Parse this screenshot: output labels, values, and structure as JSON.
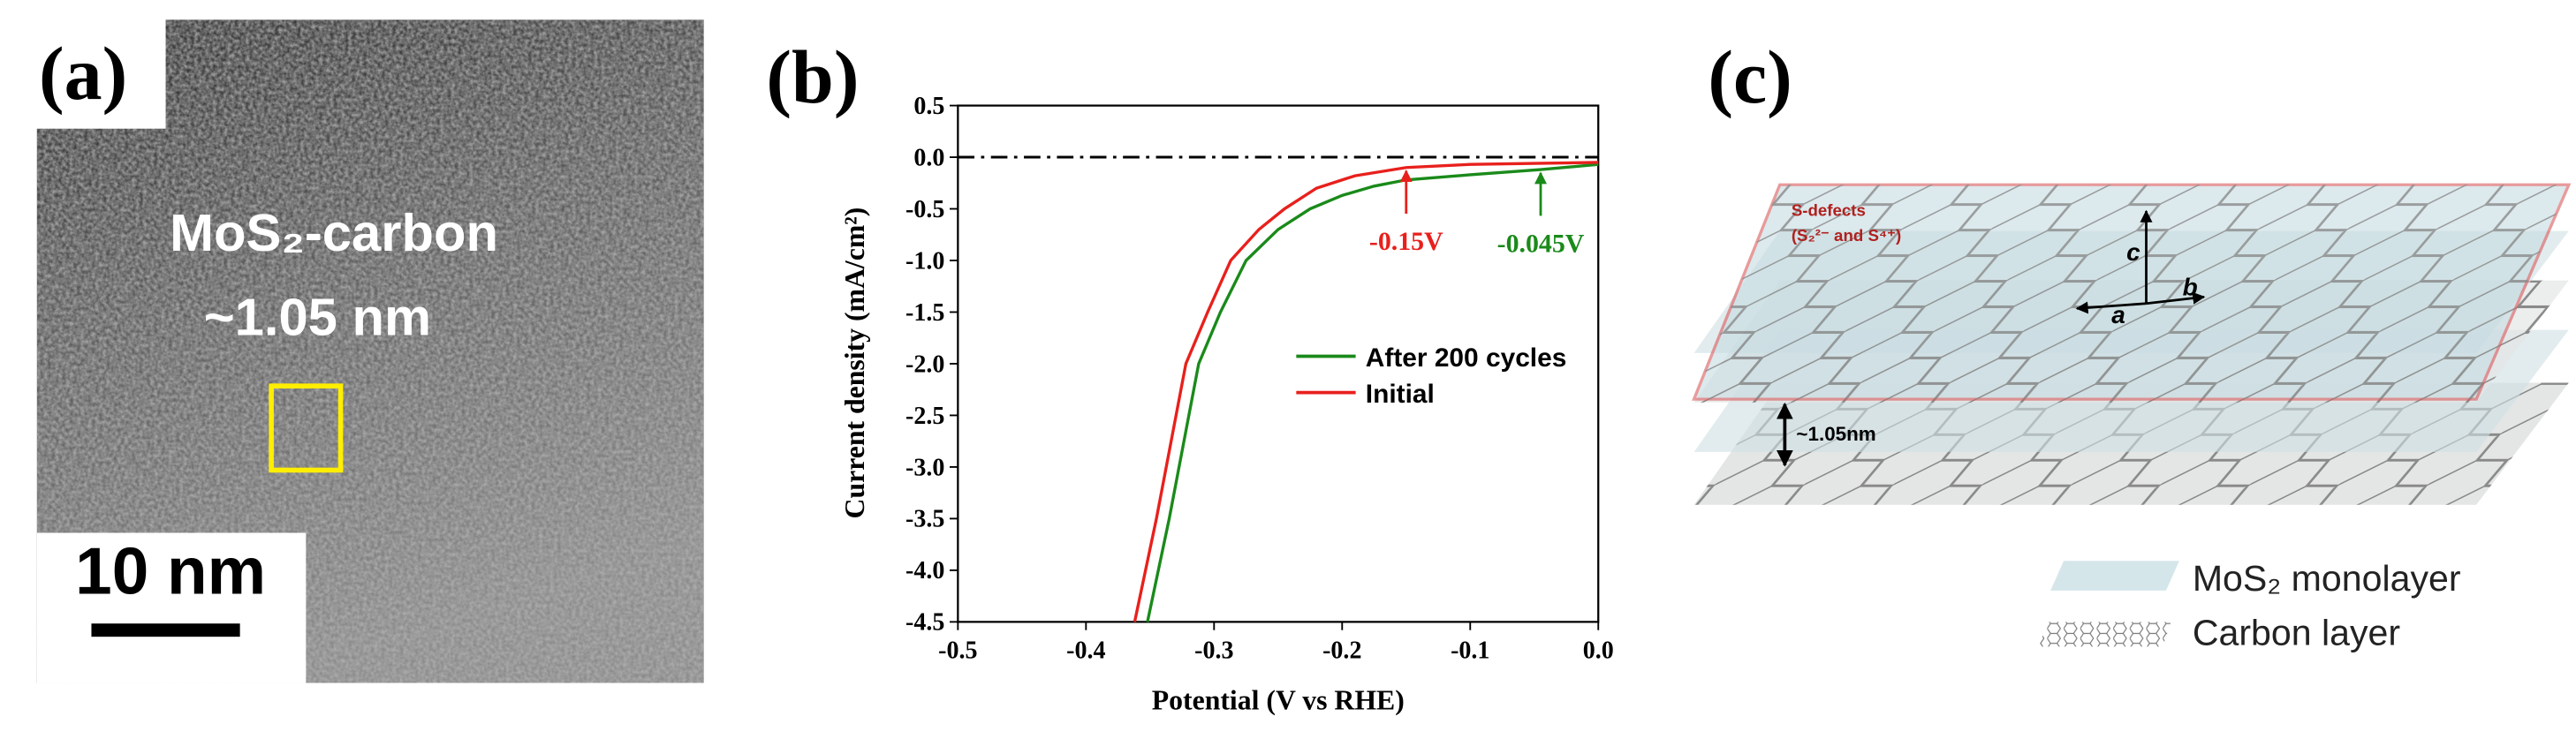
{
  "panel_labels": [
    "(a)",
    "(b)",
    "(c)"
  ],
  "tem_image": {
    "label_line1": "MoS₂-carbon",
    "label_line2": "~1.05 nm",
    "scale_bar": "10 nm"
  },
  "chart_data": {
    "type": "line",
    "xlabel": "Potential (V vs  RHE)",
    "ylabel": "Current density (mA/cm²)",
    "xlim": [
      -0.5,
      0
    ],
    "ylim": [
      -4.5,
      0.5
    ],
    "xticks": [
      -0.5,
      -0.4,
      -0.3,
      -0.2,
      -0.1,
      {
        "value": 0,
        "label": "0.0"
      }
    ],
    "yticks": [
      0.5,
      {
        "value": 0,
        "label": "0.0"
      },
      -0.5,
      {
        "value": -1,
        "label": "-1.0"
      },
      -1.5,
      {
        "value": -2,
        "label": "-2.0"
      },
      -2.5,
      {
        "value": -3,
        "label": "-3.0"
      },
      -3.5,
      {
        "value": -4,
        "label": "-4.0"
      },
      -4.5
    ],
    "reference_line": 0,
    "legend": "center-right",
    "series": [
      {
        "name": "After 200 cycles",
        "color": "#1a8a1a",
        "x": [
          -0.352,
          -0.335,
          -0.312,
          -0.295,
          -0.275,
          -0.25,
          -0.225,
          -0.2,
          -0.175,
          -0.15,
          -0.1,
          -0.045,
          0
        ],
        "values": [
          -4.5,
          -3.5,
          -2.0,
          -1.5,
          -1.0,
          -0.7,
          -0.5,
          -0.37,
          -0.28,
          -0.22,
          -0.17,
          -0.12,
          -0.07
        ]
      },
      {
        "name": "Initial",
        "color": "#e8201c",
        "x": [
          -0.362,
          -0.345,
          -0.322,
          -0.305,
          -0.287,
          -0.265,
          -0.245,
          -0.22,
          -0.19,
          -0.15,
          -0.1,
          -0.05,
          0
        ],
        "values": [
          -4.5,
          -3.5,
          -2.0,
          -1.5,
          -1.0,
          -0.7,
          -0.5,
          -0.3,
          -0.18,
          -0.1,
          -0.07,
          -0.06,
          -0.05
        ]
      }
    ],
    "annotations": [
      {
        "text": "-0.15V",
        "x": -0.15,
        "series": 1
      },
      {
        "text": "-0.045V",
        "x": -0.045,
        "series": 0
      }
    ]
  },
  "schematic": {
    "defects_title": "S-defects",
    "defects_detail": "(S₂²⁻ and S⁴⁺)",
    "axes": [
      "c",
      "b",
      "a"
    ],
    "spacing": "~1.05nm",
    "legend": [
      "MoS₂ monolayer",
      "Carbon layer"
    ]
  }
}
